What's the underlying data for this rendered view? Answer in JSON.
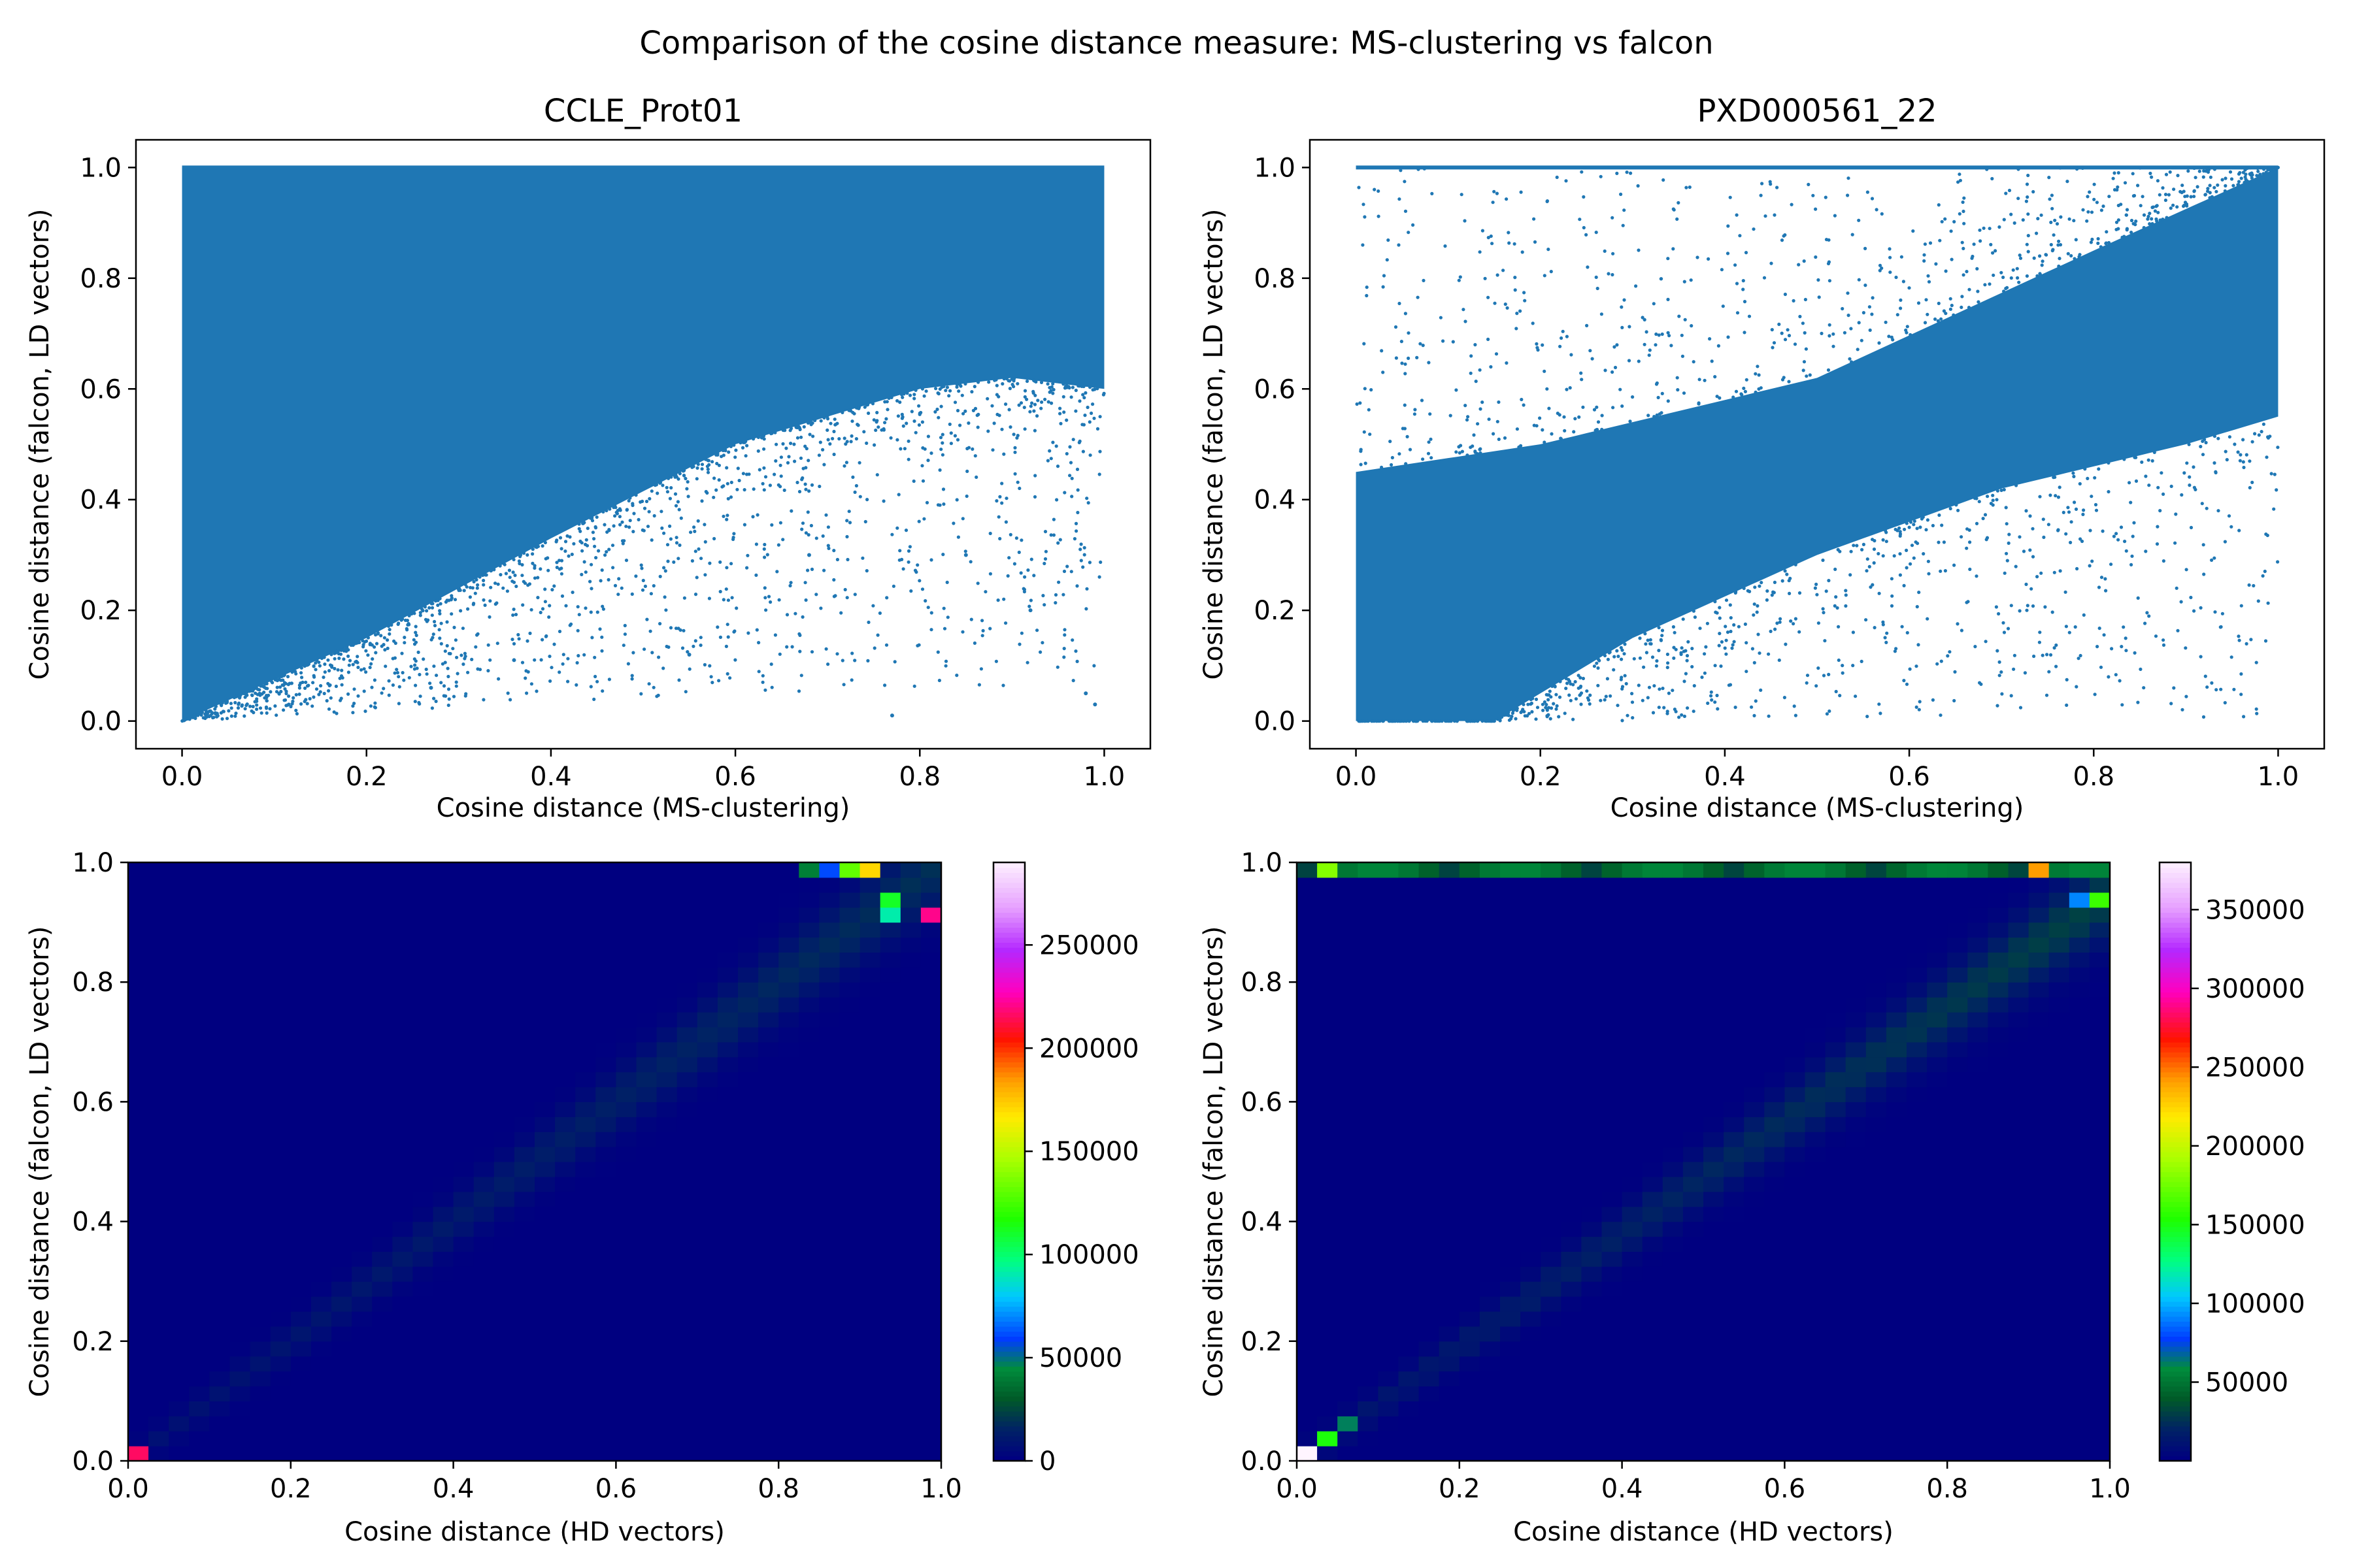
{
  "figure": {
    "suptitle": "Comparison of the cosine distance measure: MS-clustering vs falcon"
  },
  "colors": {
    "scatter_point": "#1f77b4",
    "axis": "#000000",
    "background": "#ffffff",
    "colormap": "gist_ncar"
  },
  "chart_data": [
    {
      "type": "scatter",
      "title": "CCLE_Prot01",
      "xlabel": "Cosine distance (MS-clustering)",
      "ylabel": "Cosine distance (falcon, LD vectors)",
      "xlim": [
        -0.05,
        1.05
      ],
      "ylim": [
        -0.05,
        1.05
      ],
      "xticks": [
        "0.0",
        "0.2",
        "0.4",
        "0.6",
        "0.8",
        "1.0"
      ],
      "yticks": [
        "0.0",
        "0.2",
        "0.4",
        "0.6",
        "0.8",
        "1.0"
      ],
      "grid": false,
      "point_color": "#1f77b4",
      "density_description": {
        "dense_region_upper_boundary_y": 1.0,
        "dense_region_lower_boundary": [
          [
            0.0,
            0.0
          ],
          [
            0.2,
            0.15
          ],
          [
            0.4,
            0.33
          ],
          [
            0.6,
            0.5
          ],
          [
            0.8,
            0.6
          ],
          [
            0.9,
            0.62
          ],
          [
            1.0,
            0.6
          ]
        ],
        "sparse_points_below_boundary": [
          [
            0.27,
            0.06
          ],
          [
            0.36,
            0.11
          ],
          [
            0.55,
            0.12
          ],
          [
            0.77,
            0.01
          ],
          [
            0.98,
            0.05
          ],
          [
            0.99,
            0.03
          ],
          [
            0.68,
            0.3
          ],
          [
            0.85,
            0.3
          ],
          [
            0.92,
            0.2
          ]
        ]
      }
    },
    {
      "type": "scatter",
      "title": "PXD000561_22",
      "xlabel": "Cosine distance (MS-clustering)",
      "ylabel": "Cosine distance (falcon, LD vectors)",
      "xlim": [
        -0.05,
        1.05
      ],
      "ylim": [
        -0.05,
        1.05
      ],
      "xticks": [
        "0.0",
        "0.2",
        "0.4",
        "0.6",
        "0.8",
        "1.0"
      ],
      "yticks": [
        "0.0",
        "0.2",
        "0.4",
        "0.6",
        "0.8",
        "1.0"
      ],
      "grid": false,
      "point_color": "#1f77b4",
      "density_description": {
        "dense_region_lower_boundary": [
          [
            0.0,
            0.0
          ],
          [
            0.15,
            0.0
          ],
          [
            0.3,
            0.15
          ],
          [
            0.5,
            0.3
          ],
          [
            0.7,
            0.42
          ],
          [
            0.9,
            0.5
          ],
          [
            1.0,
            0.55
          ]
        ],
        "dense_region_upper_boundary": [
          [
            0.0,
            0.45
          ],
          [
            0.2,
            0.5
          ],
          [
            0.5,
            0.62
          ],
          [
            0.8,
            0.85
          ],
          [
            1.0,
            1.0
          ]
        ],
        "flat_line_at_y": 1.0
      }
    },
    {
      "type": "heatmap",
      "title": "",
      "xlabel": "Cosine distance (HD vectors)",
      "ylabel": "Cosine distance (falcon, LD vectors)",
      "xlim": [
        0.0,
        1.0
      ],
      "ylim": [
        0.0,
        1.0
      ],
      "bins": 40,
      "xticks": [
        "0.0",
        "0.2",
        "0.4",
        "0.6",
        "0.8",
        "1.0"
      ],
      "yticks": [
        "0.0",
        "0.2",
        "0.4",
        "0.6",
        "0.8",
        "1.0"
      ],
      "colorbar_ticks": [
        "0",
        "50000",
        "100000",
        "150000",
        "200000",
        "250000"
      ],
      "colorbar_range": [
        0,
        290000
      ],
      "notable_cells": [
        {
          "x": 0.0125,
          "y": 0.0125,
          "count": 215000
        },
        {
          "x": 0.9875,
          "y": 0.9125,
          "count": 220000
        },
        {
          "x": 0.9125,
          "y": 0.9875,
          "count": 170000
        },
        {
          "x": 0.8875,
          "y": 0.9875,
          "count": 130000
        },
        {
          "x": 0.9375,
          "y": 0.9375,
          "count": 110000
        },
        {
          "x": 0.9375,
          "y": 0.9125,
          "count": 90000
        },
        {
          "x": 0.8625,
          "y": 0.9875,
          "count": 60000
        },
        {
          "x": 0.8375,
          "y": 0.9875,
          "count": 40000
        }
      ],
      "diagonal_band": {
        "from": [
          0.0,
          0.0
        ],
        "to": [
          0.95,
          0.95
        ],
        "typical_count": 12000
      }
    },
    {
      "type": "heatmap",
      "title": "",
      "xlabel": "Cosine distance (HD vectors)",
      "ylabel": "Cosine distance (falcon, LD vectors)",
      "xlim": [
        0.0,
        1.0
      ],
      "ylim": [
        0.0,
        1.0
      ],
      "bins": 40,
      "xticks": [
        "0.0",
        "0.2",
        "0.4",
        "0.6",
        "0.8",
        "1.0"
      ],
      "yticks": [
        "0.0",
        "0.2",
        "0.4",
        "0.6",
        "0.8",
        "1.0"
      ],
      "colorbar_ticks": [
        "50000",
        "100000",
        "150000",
        "200000",
        "250000",
        "300000",
        "350000"
      ],
      "colorbar_range": [
        0,
        380000
      ],
      "notable_cells": [
        {
          "x": 0.0125,
          "y": 0.0125,
          "count": 380000
        },
        {
          "x": 0.0375,
          "y": 0.0375,
          "count": 150000
        },
        {
          "x": 0.0625,
          "y": 0.0625,
          "count": 60000
        },
        {
          "x": 0.9125,
          "y": 0.9875,
          "count": 240000
        },
        {
          "x": 0.0375,
          "y": 0.9875,
          "count": 180000
        },
        {
          "x": 0.9875,
          "y": 0.9375,
          "count": 160000
        },
        {
          "x": 0.9625,
          "y": 0.9375,
          "count": 90000
        }
      ],
      "top_row_y": 0.9875,
      "diagonal_band": {
        "from": [
          0.0,
          0.0
        ],
        "to": [
          0.95,
          0.9
        ],
        "typical_count": 20000
      }
    }
  ]
}
